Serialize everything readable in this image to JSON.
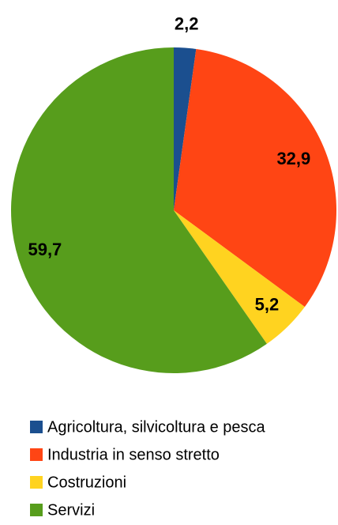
{
  "chart_data": {
    "type": "pie",
    "categories": [
      "Agricoltura, silvicoltura e pesca",
      "Industria in senso stretto",
      "Costruzioni",
      "Servizi"
    ],
    "values": [
      2.2,
      32.9,
      5.2,
      59.7
    ],
    "value_labels": [
      "2,2",
      "32,9",
      "5,2",
      "59,7"
    ],
    "colors": [
      "#1b4f8f",
      "#ff4514",
      "#ffd320",
      "#579d1c"
    ],
    "legend": "bottom"
  }
}
